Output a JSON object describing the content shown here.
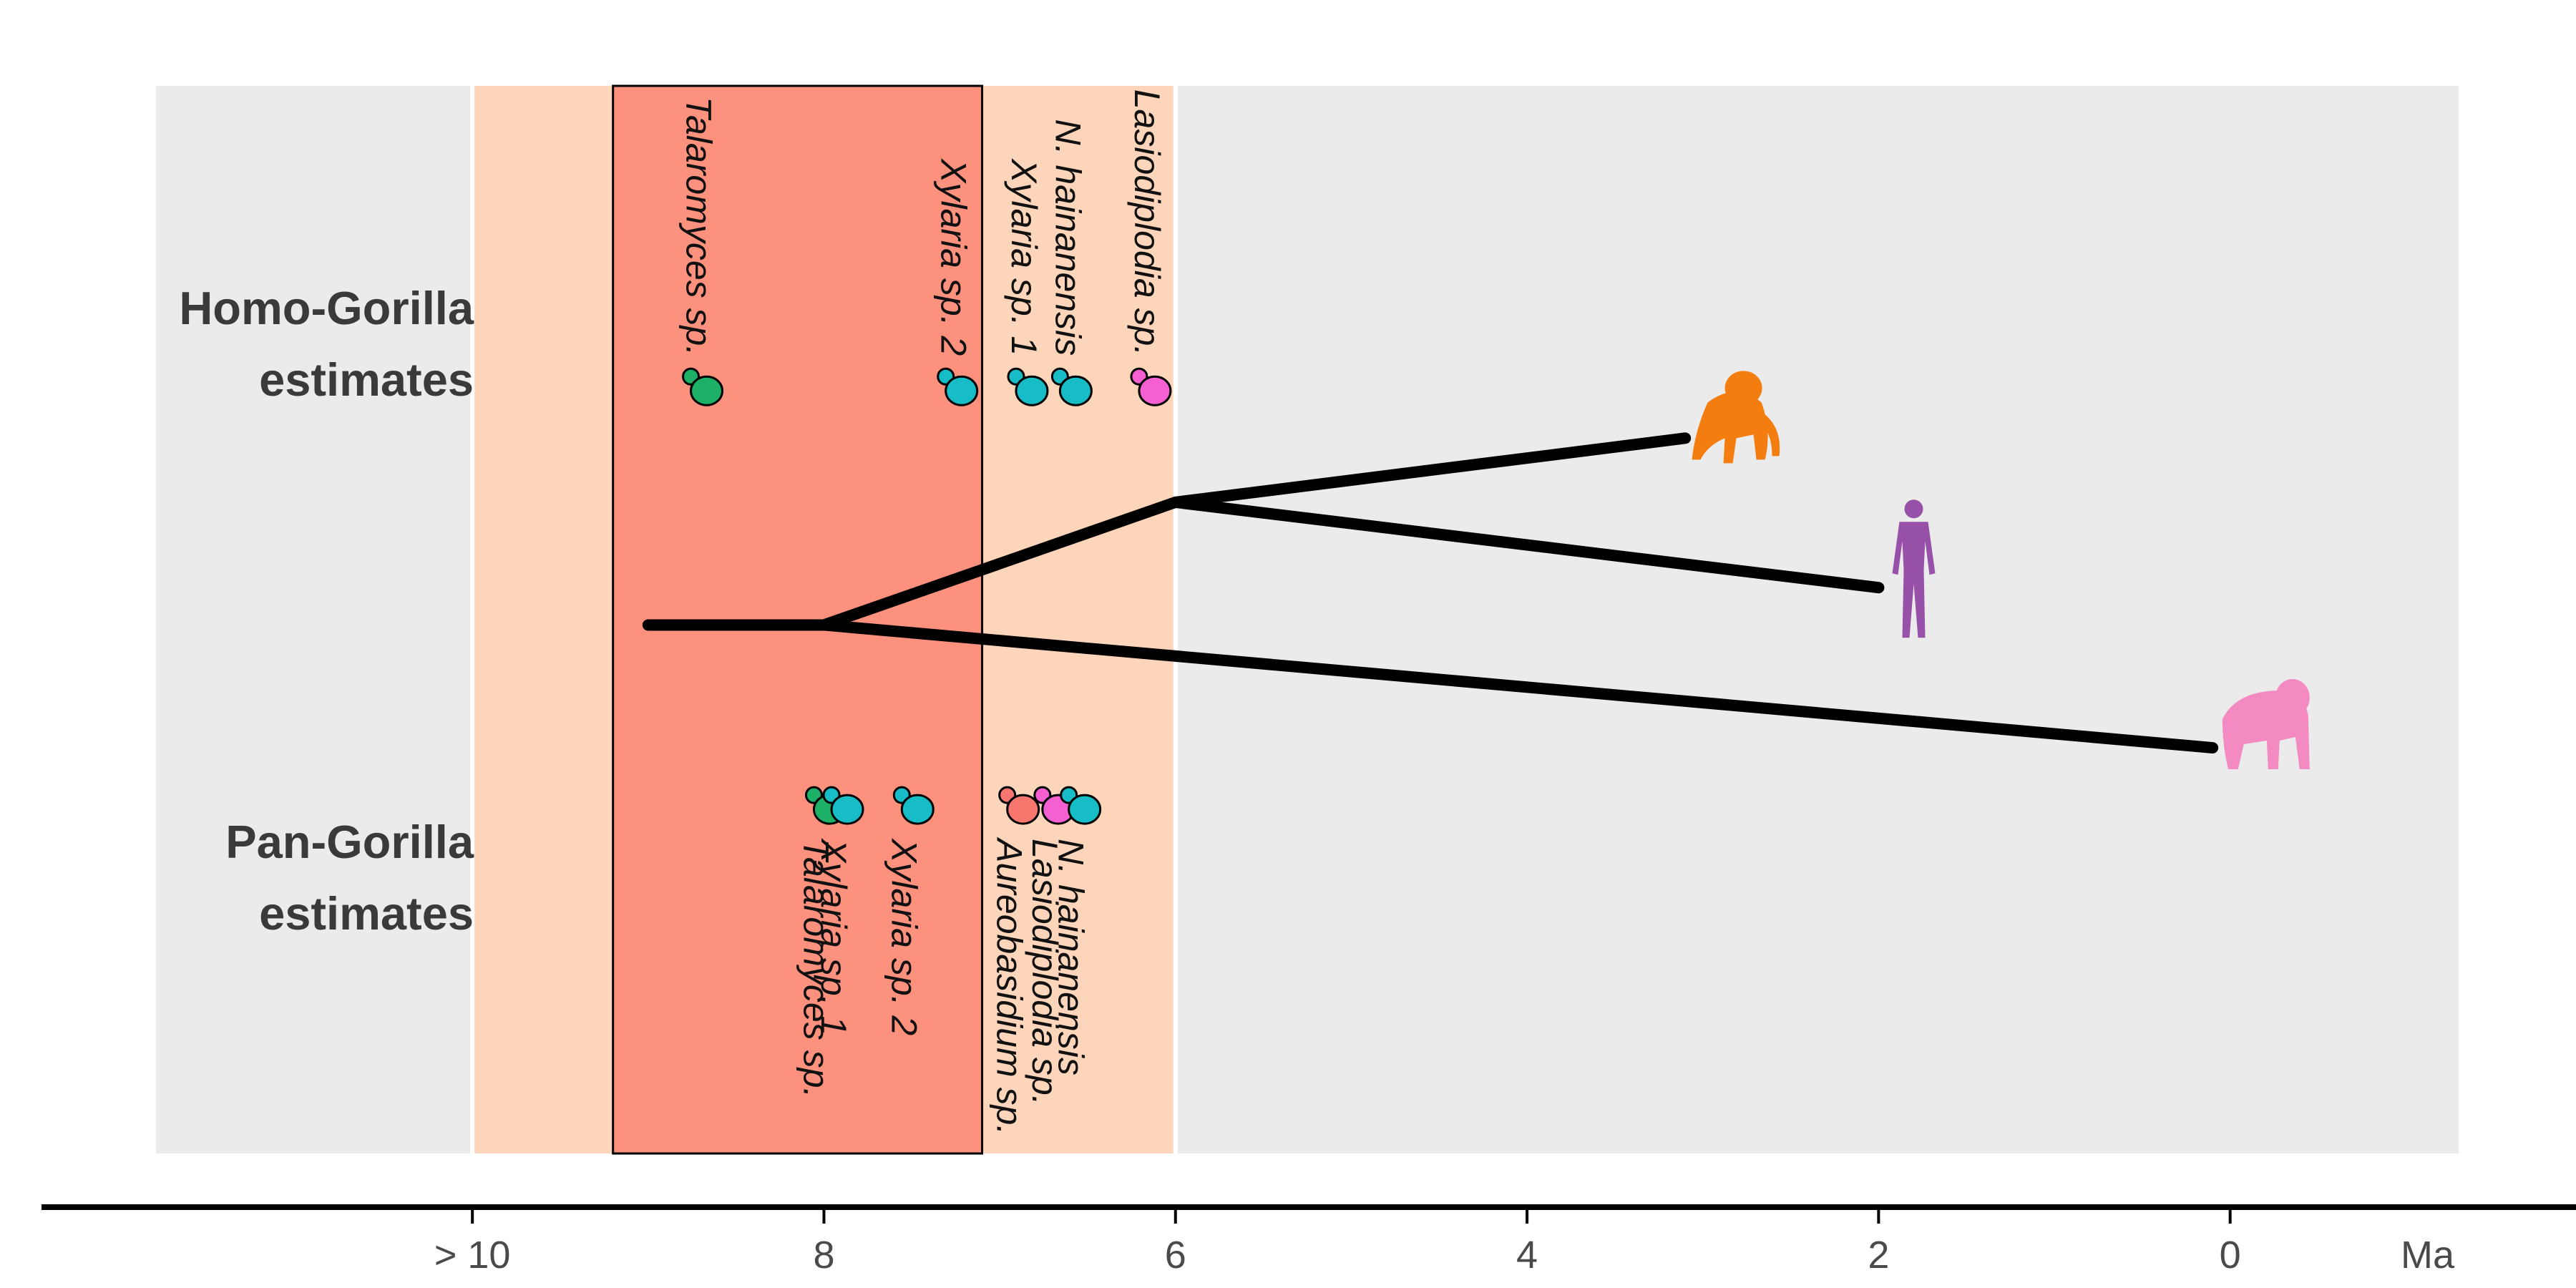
{
  "chart_data": {
    "type": "timeline",
    "unit_label": "Ma",
    "x_axis": {
      "direction": "reversed",
      "range_ma": [
        11.8,
        -1.3
      ],
      "ticks": [
        {
          "value": 10,
          "label": "> 10"
        },
        {
          "value": 8,
          "label": "8"
        },
        {
          "value": 6,
          "label": "6"
        },
        {
          "value": 4,
          "label": "4"
        },
        {
          "value": 2,
          "label": "2"
        },
        {
          "value": 0,
          "label": "0"
        }
      ]
    },
    "rows": [
      {
        "key": "homo",
        "label_lines": [
          "Homo-Gorilla",
          "estimates"
        ]
      },
      {
        "key": "pan",
        "label_lines": [
          "Pan-Gorilla",
          "estimates"
        ]
      }
    ],
    "shaded_bands": [
      {
        "from": 10,
        "to": 6,
        "color": "#fdd5bb"
      },
      {
        "from": 9.2,
        "to": 7.1,
        "color": "#fc917e",
        "outlined": true
      }
    ],
    "phylogeny": {
      "root_start": 9.0,
      "root_split": 8.0,
      "inner_split": 6.0,
      "branch_width": 16,
      "tips": [
        {
          "name": "orangutan",
          "icon": "orangutan-icon",
          "color": "#f47d0f",
          "age": 3.1,
          "icon_x": 2.85,
          "y": 0.33
        },
        {
          "name": "human",
          "icon": "human-icon",
          "color": "#9751a9",
          "age": 2.0,
          "icon_x": 1.8,
          "y": 0.47
        },
        {
          "name": "gorilla",
          "icon": "gorilla-icon",
          "color": "#f48ac2",
          "age": 0.1,
          "icon_x": -0.2,
          "y": 0.62
        }
      ]
    },
    "estimates": {
      "homo": [
        {
          "taxon": "Talaromyces sp.",
          "age": 8.7,
          "color": "#1db067"
        },
        {
          "taxon": "Xylaria sp. 2",
          "age": 7.25,
          "color": "#16bdc7"
        },
        {
          "taxon": "Xylaria sp. 1",
          "age": 6.85,
          "color": "#16bdc7"
        },
        {
          "taxon": "N. hainanensis",
          "age": 6.6,
          "color": "#16bdc7"
        },
        {
          "taxon": "Lasiodiplodia sp.",
          "age": 6.15,
          "color": "#f45fd1"
        }
      ],
      "pan": [
        {
          "taxon": "Talaromyces sp.",
          "age": 8.0,
          "color": "#1db067"
        },
        {
          "taxon": "Xylaria sp. 1",
          "age": 7.9,
          "color": "#16bdc7"
        },
        {
          "taxon": "Xylaria sp. 2",
          "age": 7.5,
          "color": "#16bdc7"
        },
        {
          "taxon": "Aureobasidium sp.",
          "age": 6.9,
          "color": "#f8766d"
        },
        {
          "taxon": "Lasiodiplodia sp.",
          "age": 6.7,
          "color": "#f45fd1"
        },
        {
          "taxon": "N. hainanensis",
          "age": 6.55,
          "color": "#16bdc7"
        }
      ]
    },
    "colors": {
      "panel_bg": "#ebebeb",
      "band_light": "#fdd5bb",
      "band_dark": "#fc917e",
      "branch": "#000000",
      "axis": "#000000"
    }
  }
}
